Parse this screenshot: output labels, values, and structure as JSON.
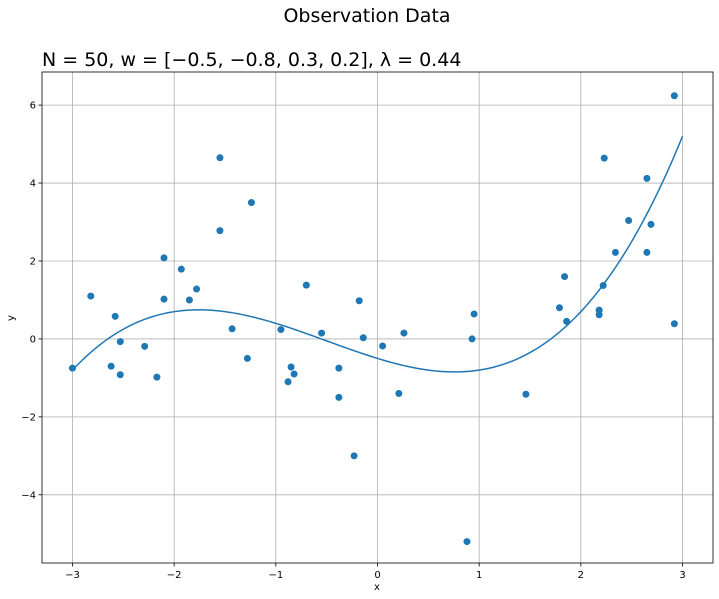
{
  "chart_data": {
    "type": "scatter",
    "suptitle": "Observation Data",
    "title": "N = 50, w = [−0.5, −0.8, 0.3, 0.2], λ = 0.44",
    "xlabel": "x",
    "ylabel": "y",
    "xlim": [
      -3.3,
      3.3
    ],
    "ylim": [
      -5.75,
      6.85
    ],
    "grid": true,
    "xticks": [
      -3,
      -2,
      -1,
      0,
      1,
      2,
      3
    ],
    "xtick_labels": [
      "−3",
      "−2",
      "−1",
      "0",
      "1",
      "2",
      "3"
    ],
    "yticks": [
      -4,
      -2,
      0,
      2,
      4,
      6
    ],
    "ytick_labels": [
      "−4",
      "−2",
      "0",
      "2",
      "4",
      "6"
    ],
    "point_color": "#1f77b4",
    "line_color": "#1f77b4",
    "points": [
      {
        "x": -3.0,
        "y": -0.75
      },
      {
        "x": -2.82,
        "y": 1.1
      },
      {
        "x": -2.62,
        "y": -0.7
      },
      {
        "x": -2.58,
        "y": 0.58
      },
      {
        "x": -2.53,
        "y": -0.07
      },
      {
        "x": -2.53,
        "y": -0.92
      },
      {
        "x": -2.29,
        "y": -0.19
      },
      {
        "x": -2.17,
        "y": -0.98
      },
      {
        "x": -2.1,
        "y": 2.08
      },
      {
        "x": -2.1,
        "y": 1.02
      },
      {
        "x": -1.93,
        "y": 1.79
      },
      {
        "x": -1.85,
        "y": 1.0
      },
      {
        "x": -1.78,
        "y": 1.28
      },
      {
        "x": -1.55,
        "y": 4.65
      },
      {
        "x": -1.55,
        "y": 2.78
      },
      {
        "x": -1.43,
        "y": 0.26
      },
      {
        "x": -1.28,
        "y": -0.5
      },
      {
        "x": -1.24,
        "y": 3.5
      },
      {
        "x": -0.95,
        "y": 0.24
      },
      {
        "x": -0.88,
        "y": -1.1
      },
      {
        "x": -0.85,
        "y": -0.72
      },
      {
        "x": -0.82,
        "y": -0.9
      },
      {
        "x": -0.7,
        "y": 1.38
      },
      {
        "x": -0.55,
        "y": 0.15
      },
      {
        "x": -0.38,
        "y": -0.75
      },
      {
        "x": -0.38,
        "y": -1.5
      },
      {
        "x": -0.23,
        "y": -3.0
      },
      {
        "x": -0.18,
        "y": 0.98
      },
      {
        "x": -0.14,
        "y": 0.03
      },
      {
        "x": 0.05,
        "y": -0.18
      },
      {
        "x": 0.21,
        "y": -1.4
      },
      {
        "x": 0.26,
        "y": 0.15
      },
      {
        "x": 0.88,
        "y": -5.2
      },
      {
        "x": 0.93,
        "y": 0.0
      },
      {
        "x": 0.95,
        "y": 0.64
      },
      {
        "x": 1.46,
        "y": -1.42
      },
      {
        "x": 1.79,
        "y": 0.8
      },
      {
        "x": 1.84,
        "y": 1.6
      },
      {
        "x": 1.86,
        "y": 0.45
      },
      {
        "x": 2.18,
        "y": 0.62
      },
      {
        "x": 2.18,
        "y": 0.74
      },
      {
        "x": 2.22,
        "y": 1.37
      },
      {
        "x": 2.23,
        "y": 4.64
      },
      {
        "x": 2.34,
        "y": 2.22
      },
      {
        "x": 2.47,
        "y": 3.04
      },
      {
        "x": 2.65,
        "y": 2.22
      },
      {
        "x": 2.65,
        "y": 4.12
      },
      {
        "x": 2.69,
        "y": 2.94
      },
      {
        "x": 2.92,
        "y": 0.39
      },
      {
        "x": 2.92,
        "y": 6.24
      }
    ],
    "curve_coefficients": [
      -0.5,
      -0.8,
      0.3,
      0.2
    ],
    "curve_x_range": [
      -3.0,
      3.0
    ]
  }
}
